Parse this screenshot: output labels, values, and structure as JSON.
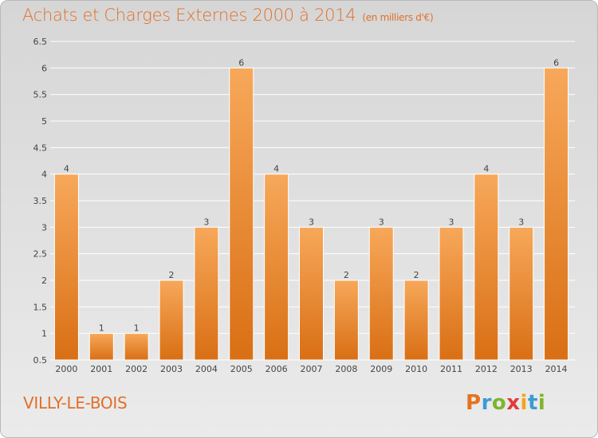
{
  "header": {
    "title": "Achats et Charges Externes 2000 à 2014",
    "unit": "(en milliers d'€)"
  },
  "footer": {
    "commune": "VILLY-LE-BOIS",
    "logo_letters": [
      "P",
      "r",
      "o",
      "x",
      "i",
      "t",
      "i"
    ],
    "logo_colors": [
      "#e4731f",
      "#3a9bd6",
      "#7db52e",
      "#e23b3b",
      "#f2a51a",
      "#3a9bd6",
      "#7db52e"
    ]
  },
  "colors": {
    "bar_light": "#f7a85a",
    "bar_dark": "#d96f14",
    "grid": "#ffffff",
    "axis_text": "#444444"
  },
  "chart_data": {
    "type": "bar",
    "title": "Achats et Charges Externes 2000 à 2014",
    "categories": [
      "2000",
      "2001",
      "2002",
      "2003",
      "2004",
      "2005",
      "2006",
      "2007",
      "2008",
      "2009",
      "2010",
      "2011",
      "2012",
      "2013",
      "2014"
    ],
    "values": [
      4,
      1,
      1,
      2,
      3,
      6,
      4,
      3,
      2,
      3,
      2,
      3,
      4,
      3,
      6
    ],
    "data_labels": [
      "4",
      "1",
      "1",
      "2",
      "3",
      "6",
      "4",
      "3",
      "2",
      "3",
      "2",
      "3",
      "4",
      "3",
      "6"
    ],
    "yticks": [
      "0.5",
      "1",
      "1.5",
      "2",
      "2.5",
      "3",
      "3.5",
      "4",
      "4.5",
      "5",
      "5.5",
      "6",
      "6.5"
    ],
    "ylim": [
      0.5,
      6.5
    ],
    "grid": true,
    "legend": "none"
  }
}
